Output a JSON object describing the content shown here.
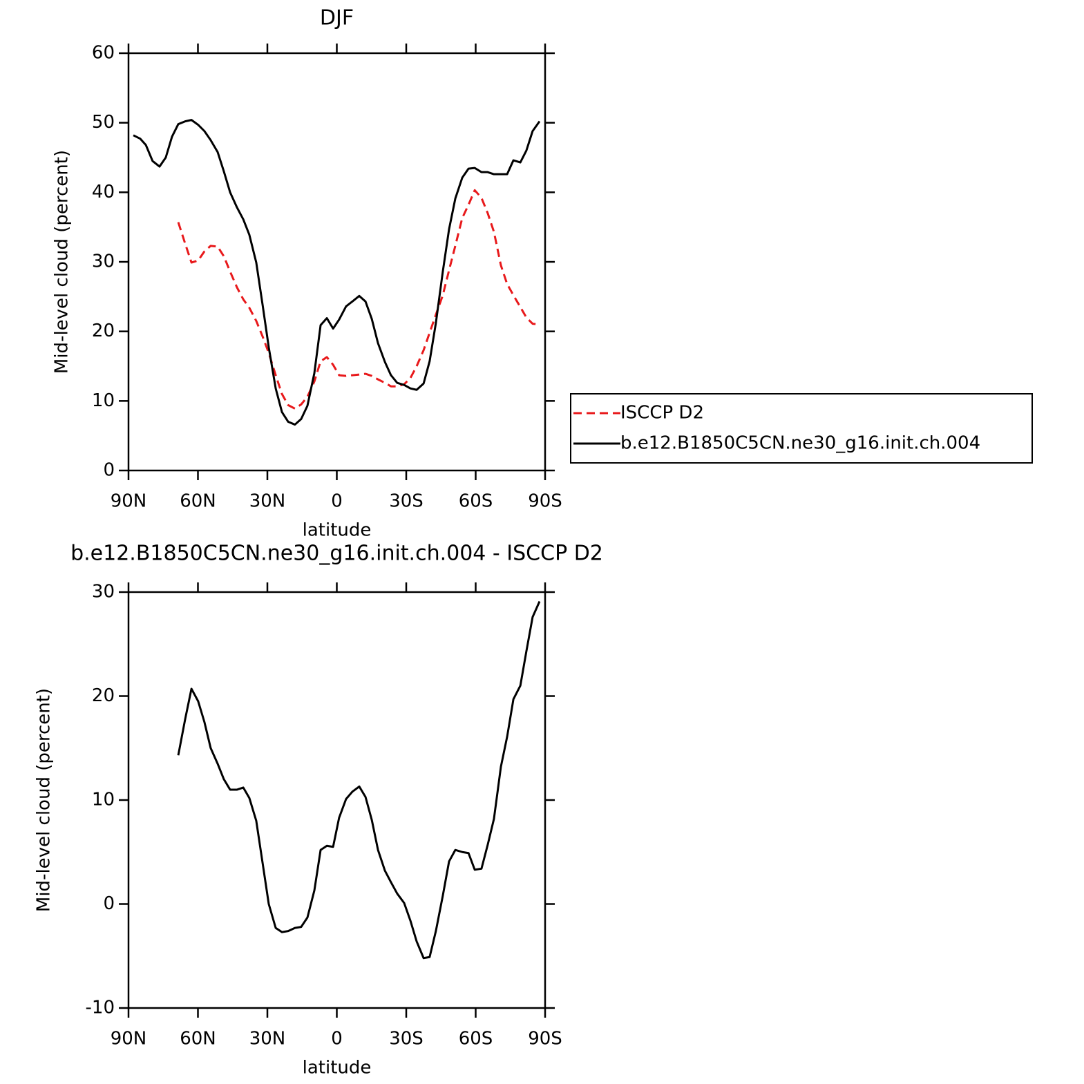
{
  "chart_data": [
    {
      "type": "line",
      "title": "DJF",
      "xlabel": "latitude",
      "ylabel": "Mid-level cloud (percent)",
      "x": [
        87.9,
        84.9,
        82.5,
        79.6,
        76.6,
        73.9,
        71.2,
        68.5,
        65.5,
        62.8,
        59.9,
        57.2,
        54.5,
        51.5,
        48.8,
        46.1,
        43.1,
        40.4,
        37.8,
        34.8,
        32.1,
        29.4,
        26.4,
        23.7,
        21.0,
        18.1,
        15.4,
        12.7,
        9.7,
        7.0,
        4.3,
        1.6,
        -1.0,
        -4.0,
        -6.7,
        -9.7,
        -12.4,
        -15.1,
        -17.8,
        -20.8,
        -23.4,
        -26.1,
        -29.1,
        -31.8,
        -34.5,
        -37.5,
        -40.1,
        -42.8,
        -45.8,
        -48.5,
        -51.2,
        -54.2,
        -56.9,
        -59.6,
        -62.5,
        -65.2,
        -67.9,
        -70.9,
        -73.6,
        -76.3,
        -79.3,
        -81.9,
        -84.6,
        -87.6
      ],
      "series": [
        {
          "name": "ISCCP D2",
          "color": "#e8191b",
          "dashed": true,
          "values": [
            null,
            null,
            null,
            null,
            null,
            null,
            null,
            35.7,
            32.6,
            29.9,
            30.2,
            31.5,
            32.3,
            32.2,
            30.8,
            28.6,
            26.3,
            24.6,
            23.4,
            21.5,
            19.3,
            16.9,
            13.7,
            11.0,
            9.4,
            8.9,
            9.5,
            10.6,
            12.8,
            15.7,
            16.3,
            15.2,
            13.7,
            13.6,
            13.7,
            13.8,
            13.9,
            13.6,
            13.1,
            12.6,
            12.1,
            12.1,
            12.4,
            13.3,
            15.0,
            17.3,
            19.8,
            22.4,
            25.2,
            28.8,
            32.3,
            36.3,
            38.2,
            40.3,
            39.2,
            37.0,
            34.3,
            29.5,
            26.8,
            25.2,
            23.5,
            22.0,
            21.1,
            21.0
          ]
        },
        {
          "name": "b.e12.B1850C5CN.ne30_g16.init.ch.004",
          "color": "#000000",
          "dashed": false,
          "values": [
            48.2,
            47.7,
            46.8,
            44.5,
            43.7,
            45.0,
            48.0,
            49.8,
            50.2,
            50.4,
            49.7,
            48.8,
            47.5,
            45.8,
            43.0,
            40.0,
            37.8,
            36.1,
            33.9,
            29.9,
            23.9,
            17.7,
            11.8,
            8.4,
            7.0,
            6.6,
            7.4,
            9.3,
            14.0,
            20.9,
            21.9,
            20.4,
            21.7,
            23.6,
            24.3,
            25.1,
            24.3,
            21.8,
            18.3,
            15.6,
            13.7,
            12.6,
            12.3,
            11.8,
            11.6,
            12.5,
            15.7,
            21.2,
            28.6,
            34.7,
            39.1,
            42.1,
            43.4,
            43.5,
            42.9,
            42.9,
            42.6,
            42.6,
            42.6,
            44.6,
            44.3,
            46.0,
            48.8,
            50.2
          ]
        }
      ],
      "xlim": [
        90,
        -90
      ],
      "xticks": [
        {
          "value": 90,
          "label": "90N"
        },
        {
          "value": 60,
          "label": "60N"
        },
        {
          "value": 30,
          "label": "30N"
        },
        0,
        {
          "value": -30,
          "label": "30S"
        },
        {
          "value": -60,
          "label": "60S"
        },
        {
          "value": -90,
          "label": "90S"
        }
      ],
      "ylim": [
        0,
        60
      ],
      "yticks": [
        0,
        10,
        20,
        30,
        40,
        50,
        60
      ],
      "legend": "right"
    },
    {
      "type": "line",
      "title": "b.e12.B1850C5CN.ne30_g16.init.ch.004 - ISCCP D2",
      "xlabel": "latitude",
      "ylabel": "Mid-level cloud (percent)",
      "x": [
        87.9,
        84.9,
        82.5,
        79.6,
        76.6,
        73.9,
        71.2,
        68.5,
        65.5,
        62.8,
        59.9,
        57.2,
        54.5,
        51.5,
        48.8,
        46.1,
        43.1,
        40.4,
        37.8,
        34.8,
        32.1,
        29.4,
        26.4,
        23.7,
        21.0,
        18.1,
        15.4,
        12.7,
        9.7,
        7.0,
        4.3,
        1.6,
        -1.0,
        -4.0,
        -6.7,
        -9.7,
        -12.4,
        -15.1,
        -17.8,
        -20.8,
        -23.4,
        -26.1,
        -29.1,
        -31.8,
        -34.5,
        -37.5,
        -40.1,
        -42.8,
        -45.8,
        -48.5,
        -51.2,
        -54.2,
        -56.9,
        -59.6,
        -62.5,
        -65.2,
        -67.9,
        -70.9,
        -73.6,
        -76.3,
        -79.3,
        -81.9,
        -84.6,
        -87.6
      ],
      "series": [
        {
          "color": "#000000",
          "dashed": false,
          "values": [
            null,
            null,
            null,
            null,
            null,
            null,
            null,
            14.3,
            17.8,
            20.7,
            19.5,
            17.5,
            15.0,
            13.5,
            12.0,
            11.0,
            11.0,
            11.2,
            10.2,
            8.0,
            4.0,
            0.0,
            -2.3,
            -2.7,
            -2.6,
            -2.3,
            -2.2,
            -1.3,
            1.3,
            5.2,
            5.6,
            5.5,
            8.3,
            10.1,
            10.8,
            11.3,
            10.3,
            8.1,
            5.2,
            3.2,
            2.1,
            1.0,
            0.1,
            -1.6,
            -3.6,
            -5.2,
            -5.1,
            -2.6,
            0.8,
            4.1,
            5.2,
            5.0,
            4.9,
            3.3,
            3.4,
            5.7,
            8.2,
            13.2,
            16.1,
            19.7,
            21.0,
            24.3,
            27.6,
            29.1
          ]
        }
      ],
      "xlim": [
        90,
        -90
      ],
      "xticks": [
        {
          "value": 90,
          "label": "90N"
        },
        {
          "value": 60,
          "label": "60N"
        },
        {
          "value": 30,
          "label": "30N"
        },
        0,
        {
          "value": -30,
          "label": "30S"
        },
        {
          "value": -60,
          "label": "60S"
        },
        {
          "value": -90,
          "label": "90S"
        }
      ],
      "ylim": [
        -10,
        30
      ],
      "yticks": [
        -10,
        0,
        10,
        20,
        30
      ]
    }
  ]
}
